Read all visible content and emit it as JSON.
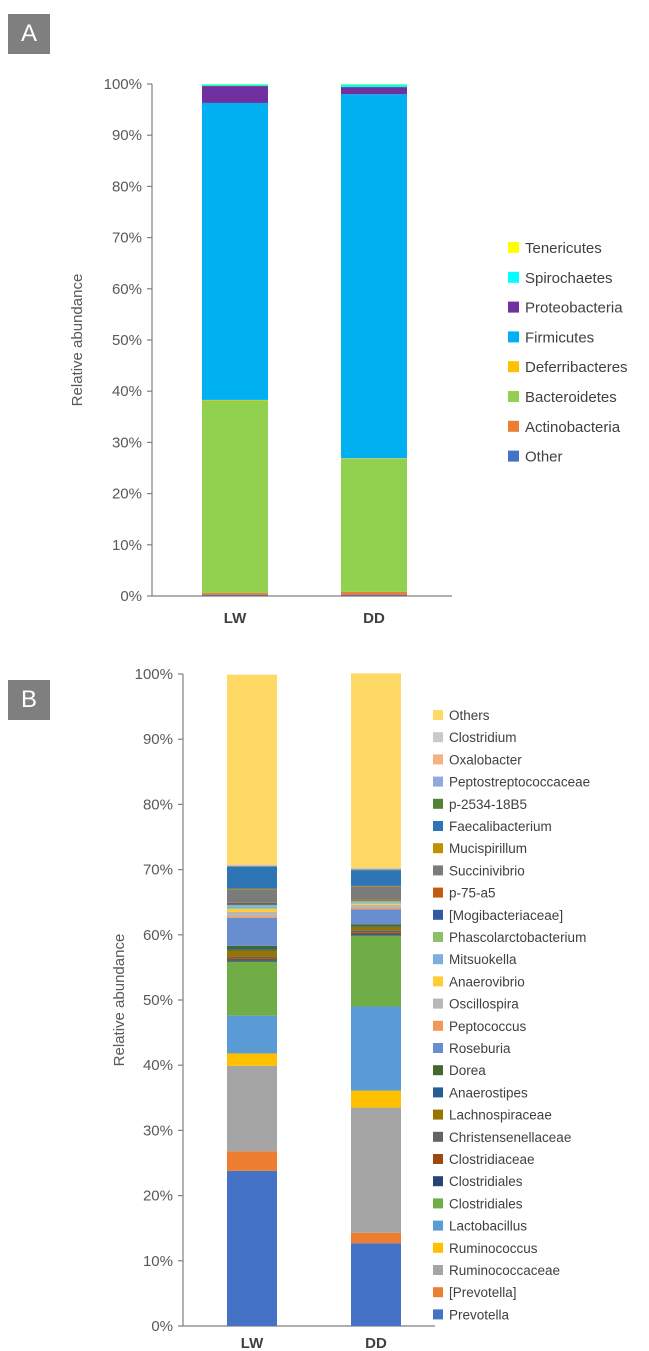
{
  "panels": {
    "a": "A",
    "b": "B"
  },
  "chart_data": [
    {
      "type": "bar",
      "stacked": true,
      "ylabel": "Relative abundance",
      "ylim": [
        0,
        100
      ],
      "yticks": [
        "0%",
        "10%",
        "20%",
        "30%",
        "40%",
        "50%",
        "60%",
        "70%",
        "80%",
        "90%",
        "100%"
      ],
      "categories": [
        "LW",
        "DD"
      ],
      "legend_position": "right",
      "series": [
        {
          "name": "Other",
          "color": "#4472c4",
          "values": [
            0.2,
            0.2
          ]
        },
        {
          "name": "Actinobacteria",
          "color": "#ed7d31",
          "values": [
            0.4,
            0.6
          ]
        },
        {
          "name": "Bacteroidetes",
          "color": "#92d050",
          "values": [
            37.6,
            26.0
          ]
        },
        {
          "name": "Deferribacteres",
          "color": "#ffc000",
          "values": [
            0.1,
            0.1
          ]
        },
        {
          "name": "Firmicutes",
          "color": "#00b0f0",
          "values": [
            58.0,
            71.1
          ]
        },
        {
          "name": "Proteobacteria",
          "color": "#7030a0",
          "values": [
            3.3,
            1.4
          ]
        },
        {
          "name": "Spirochaetes",
          "color": "#00ffff",
          "values": [
            0.3,
            0.5
          ]
        },
        {
          "name": "Tenericutes",
          "color": "#ffff00",
          "values": [
            0.1,
            0.1
          ]
        }
      ]
    },
    {
      "type": "bar",
      "stacked": true,
      "ylabel": "Relative abundance",
      "ylim": [
        0,
        100
      ],
      "yticks": [
        "0%",
        "10%",
        "20%",
        "30%",
        "40%",
        "50%",
        "60%",
        "70%",
        "80%",
        "90%",
        "100%"
      ],
      "categories": [
        "LW",
        "DD"
      ],
      "legend_position": "right",
      "series": [
        {
          "name": "Prevotella",
          "color": "#4472c4",
          "values": [
            23.8,
            12.7
          ]
        },
        {
          "name": "[Prevotella]",
          "color": "#ed7d31",
          "values": [
            3.0,
            1.6
          ]
        },
        {
          "name": "Ruminococcaceae",
          "color": "#a5a5a5",
          "values": [
            13.1,
            19.2
          ]
        },
        {
          "name": "Ruminococcus",
          "color": "#ffc000",
          "values": [
            1.9,
            2.6
          ]
        },
        {
          "name": "Lactobacillus",
          "color": "#5b9bd5",
          "values": [
            5.8,
            12.9
          ]
        },
        {
          "name": "Clostridiales",
          "color": "#70ad47",
          "values": [
            8.3,
            10.9
          ]
        },
        {
          "name": "Clostridiales",
          "color": "#264478",
          "values": [
            0.2,
            0.2
          ]
        },
        {
          "name": "Clostridiaceae",
          "color": "#9e480e",
          "values": [
            0.2,
            0.2
          ]
        },
        {
          "name": "Christensenellaceae",
          "color": "#636363",
          "values": [
            0.3,
            0.4
          ]
        },
        {
          "name": "Lachnospiraceae",
          "color": "#997300",
          "values": [
            1.0,
            0.5
          ]
        },
        {
          "name": "Anaerostipes",
          "color": "#255e91",
          "values": [
            0.2,
            0.1
          ]
        },
        {
          "name": "Dorea",
          "color": "#43682b",
          "values": [
            0.5,
            0.3
          ]
        },
        {
          "name": "Roseburia",
          "color": "#698ed0",
          "values": [
            4.3,
            2.3
          ]
        },
        {
          "name": "Peptococcus",
          "color": "#f1975a",
          "values": [
            0.2,
            0.2
          ]
        },
        {
          "name": "Oscillospira",
          "color": "#b7b7b7",
          "values": [
            0.7,
            0.5
          ]
        },
        {
          "name": "Anaerovibrio",
          "color": "#ffcd33",
          "values": [
            0.5,
            0.2
          ]
        },
        {
          "name": "Mitsuokella",
          "color": "#7cafdd",
          "values": [
            0.4,
            0.2
          ]
        },
        {
          "name": "Phascolarctobacterium",
          "color": "#8cc168",
          "values": [
            0.2,
            0.2
          ]
        },
        {
          "name": "[Mogibacteriaceae]",
          "color": "#335aa1",
          "values": [
            0.2,
            0.1
          ]
        },
        {
          "name": "p-75-a5",
          "color": "#c65911",
          "values": [
            0.1,
            0.1
          ]
        },
        {
          "name": "Succinivibrio",
          "color": "#7b7b7b",
          "values": [
            2.1,
            2.0
          ]
        },
        {
          "name": "Mucispirillum",
          "color": "#bf9000",
          "values": [
            0.1,
            0.1
          ]
        },
        {
          "name": "Faecalibacterium",
          "color": "#2e75b6",
          "values": [
            3.3,
            2.4
          ]
        },
        {
          "name": "p-2534-18B5",
          "color": "#548235",
          "values": [
            0.1,
            0.1
          ]
        },
        {
          "name": "Peptostreptococcaceae",
          "color": "#8faadc",
          "values": [
            0.1,
            0.1
          ]
        },
        {
          "name": "Oxalobacter",
          "color": "#f4b183",
          "values": [
            0.1,
            0.1
          ]
        },
        {
          "name": "Clostridium",
          "color": "#c9c9c9",
          "values": [
            0.1,
            0.1
          ]
        },
        {
          "name": "Others",
          "color": "#ffd966",
          "values": [
            29.1,
            29.8
          ]
        }
      ]
    }
  ]
}
